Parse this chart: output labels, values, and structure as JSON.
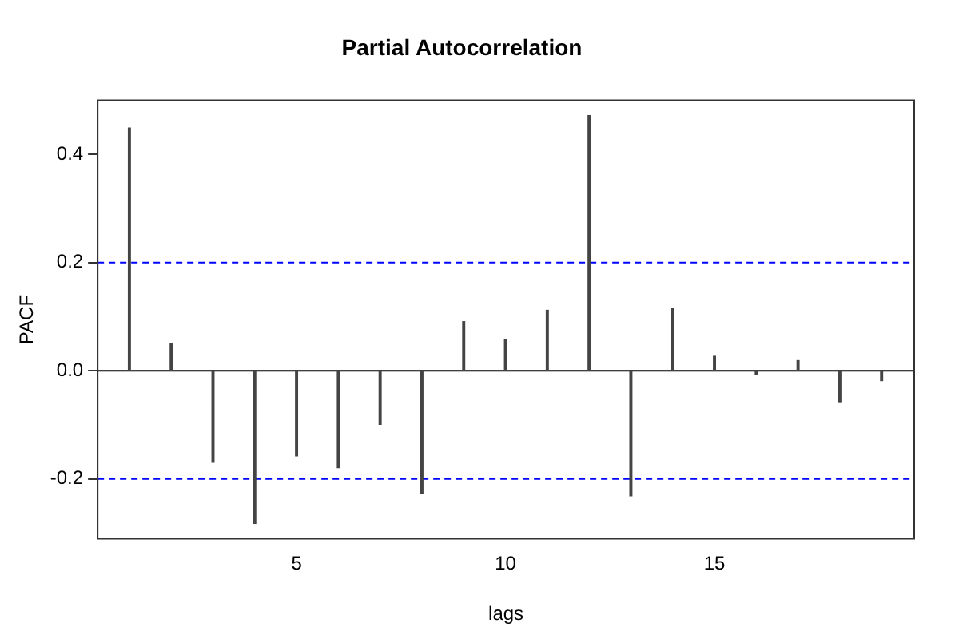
{
  "chart_data": {
    "type": "bar",
    "title": "Partial Autocorrelation",
    "xlabel": "lags",
    "ylabel": "PACF",
    "x": [
      1,
      2,
      3,
      4,
      5,
      6,
      7,
      8,
      9,
      10,
      11,
      12,
      13,
      14,
      15,
      16,
      17,
      18,
      19
    ],
    "values": [
      0.449,
      0.051,
      -0.169,
      -0.282,
      -0.157,
      -0.179,
      -0.099,
      -0.226,
      0.091,
      0.058,
      0.112,
      0.472,
      -0.231,
      0.115,
      0.027,
      -0.006,
      0.019,
      -0.057,
      -0.018
    ],
    "color": "#444444",
    "xlim": [
      0.24,
      19.78
    ],
    "xticks": [
      5,
      10,
      15
    ],
    "ylim": [
      -0.31,
      0.5
    ],
    "yticks": [
      {
        "value": -0.2,
        "label": "-0.2"
      },
      {
        "value": 0,
        "label": "0.0"
      },
      0.2,
      0.4
    ],
    "ref_lines": [
      {
        "axis": "y",
        "value": 0,
        "color": "#000000",
        "line_style": "solid"
      },
      {
        "axis": "y",
        "value": 0.2,
        "color": "#0000ff",
        "line_style": "dashed"
      },
      {
        "axis": "y",
        "value": -0.2,
        "color": "#0000ff",
        "line_style": "dashed"
      }
    ],
    "grid": false,
    "legend": false
  }
}
